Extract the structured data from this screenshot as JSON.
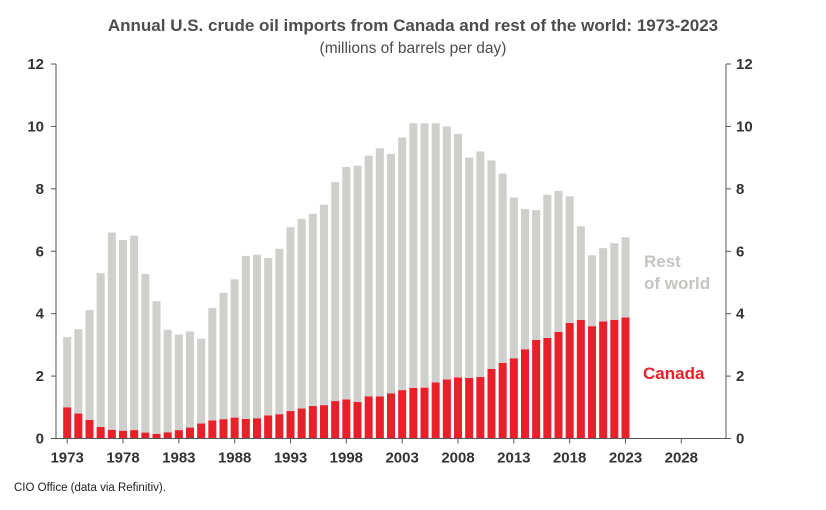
{
  "title": "Annual U.S. crude oil imports from Canada and rest of the world: 1973-2023",
  "subtitle": "(millions of barrels per day)",
  "source": "CIO Office (data via Refinitiv).",
  "colors": {
    "canada": "#e8202a",
    "rest": "#cfcfcb",
    "axis": "#555555"
  },
  "chart_data": {
    "type": "bar",
    "stacked": true,
    "ylim": [
      0,
      12
    ],
    "yticks": [
      0,
      2,
      4,
      6,
      8,
      10,
      12
    ],
    "xlim": [
      1972,
      2032
    ],
    "xticks": [
      1973,
      1978,
      1983,
      1988,
      1993,
      1998,
      2003,
      2008,
      2013,
      2018,
      2023,
      2028
    ],
    "grid": false,
    "years": [
      1973,
      1974,
      1975,
      1976,
      1977,
      1978,
      1979,
      1980,
      1981,
      1982,
      1983,
      1984,
      1985,
      1986,
      1987,
      1988,
      1989,
      1990,
      1991,
      1992,
      1993,
      1994,
      1995,
      1996,
      1997,
      1998,
      1999,
      2000,
      2001,
      2002,
      2003,
      2004,
      2005,
      2006,
      2007,
      2008,
      2009,
      2010,
      2011,
      2012,
      2013,
      2014,
      2015,
      2016,
      2017,
      2018,
      2019,
      2020,
      2021,
      2022,
      2023
    ],
    "series": [
      {
        "name": "Canada",
        "values": [
          1.0,
          0.8,
          0.6,
          0.37,
          0.28,
          0.25,
          0.27,
          0.19,
          0.15,
          0.2,
          0.27,
          0.35,
          0.48,
          0.58,
          0.62,
          0.67,
          0.63,
          0.65,
          0.74,
          0.78,
          0.88,
          0.96,
          1.04,
          1.07,
          1.2,
          1.25,
          1.17,
          1.35,
          1.35,
          1.45,
          1.55,
          1.62,
          1.63,
          1.8,
          1.89,
          1.96,
          1.94,
          1.97,
          2.23,
          2.42,
          2.57,
          2.86,
          3.16,
          3.22,
          3.42,
          3.7,
          3.8,
          3.6,
          3.75,
          3.8,
          3.88
        ]
      },
      {
        "name": "Rest of world",
        "values": [
          2.25,
          2.7,
          3.52,
          4.93,
          6.32,
          6.11,
          6.23,
          5.08,
          4.25,
          3.28,
          3.06,
          3.08,
          2.72,
          3.6,
          4.05,
          4.43,
          5.22,
          5.24,
          5.04,
          5.3,
          5.89,
          6.08,
          6.16,
          6.42,
          7.02,
          7.45,
          7.57,
          7.71,
          7.95,
          7.67,
          8.1,
          8.48,
          8.47,
          8.3,
          8.11,
          7.8,
          7.06,
          7.23,
          6.68,
          6.07,
          5.15,
          4.49,
          4.16,
          4.59,
          4.51,
          4.06,
          3.0,
          2.27,
          2.35,
          2.46,
          2.57
        ]
      }
    ],
    "labels": {
      "rest_line1": "Rest",
      "rest_line2": "of world",
      "canada": "Canada"
    }
  }
}
